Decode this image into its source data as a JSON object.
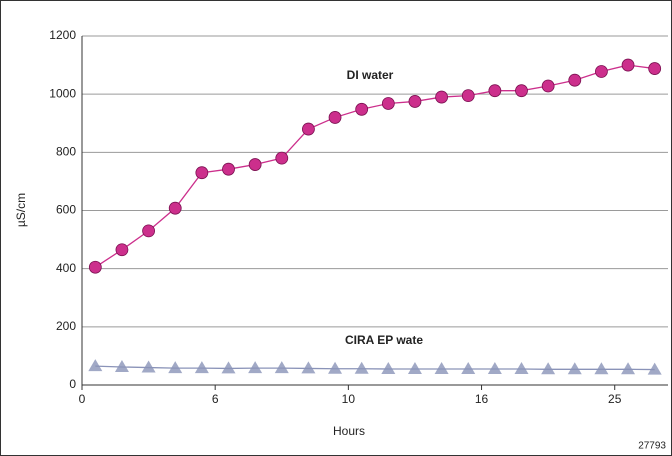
{
  "chart_data": {
    "type": "line",
    "x": [
      0.1,
      0.3,
      0.5,
      0.7,
      0.9,
      1.1,
      1.3,
      1.5,
      1.7,
      1.9,
      2.1,
      2.3,
      2.5,
      2.7,
      2.9,
      3.1,
      3.3,
      3.5,
      3.7,
      3.9,
      4.1,
      4.3
    ],
    "xlim": [
      0,
      4.4
    ],
    "xticks": [
      {
        "value": 0,
        "label": "0"
      },
      {
        "value": 1,
        "label": "6"
      },
      {
        "value": 2,
        "label": "10"
      },
      {
        "value": 3,
        "label": "16"
      },
      {
        "value": 4,
        "label": "25"
      }
    ],
    "ylim": [
      0,
      1200
    ],
    "yticks": [
      0,
      200,
      400,
      600,
      800,
      1000,
      1200
    ],
    "grid": true,
    "x_label": "Hours",
    "y_label": "µS/cm",
    "annotations": [
      "DI water",
      "CIRA EP wate",
      "27793"
    ],
    "series": [
      {
        "name": "DI water",
        "color": "#cc2f8c",
        "marker": "circle",
        "values": [
          405,
          465,
          530,
          608,
          730,
          742,
          758,
          780,
          880,
          920,
          948,
          968,
          975,
          990,
          995,
          1012,
          1012,
          1028,
          1048,
          1078,
          1100,
          1088
        ]
      },
      {
        "name": "CIRA EP wate",
        "color": "#8a93b8",
        "marker": "triangle",
        "values": [
          65,
          62,
          60,
          58,
          58,
          57,
          58,
          58,
          57,
          56,
          56,
          55,
          55,
          55,
          55,
          55,
          55,
          54,
          54,
          54,
          54,
          53
        ]
      }
    ]
  }
}
